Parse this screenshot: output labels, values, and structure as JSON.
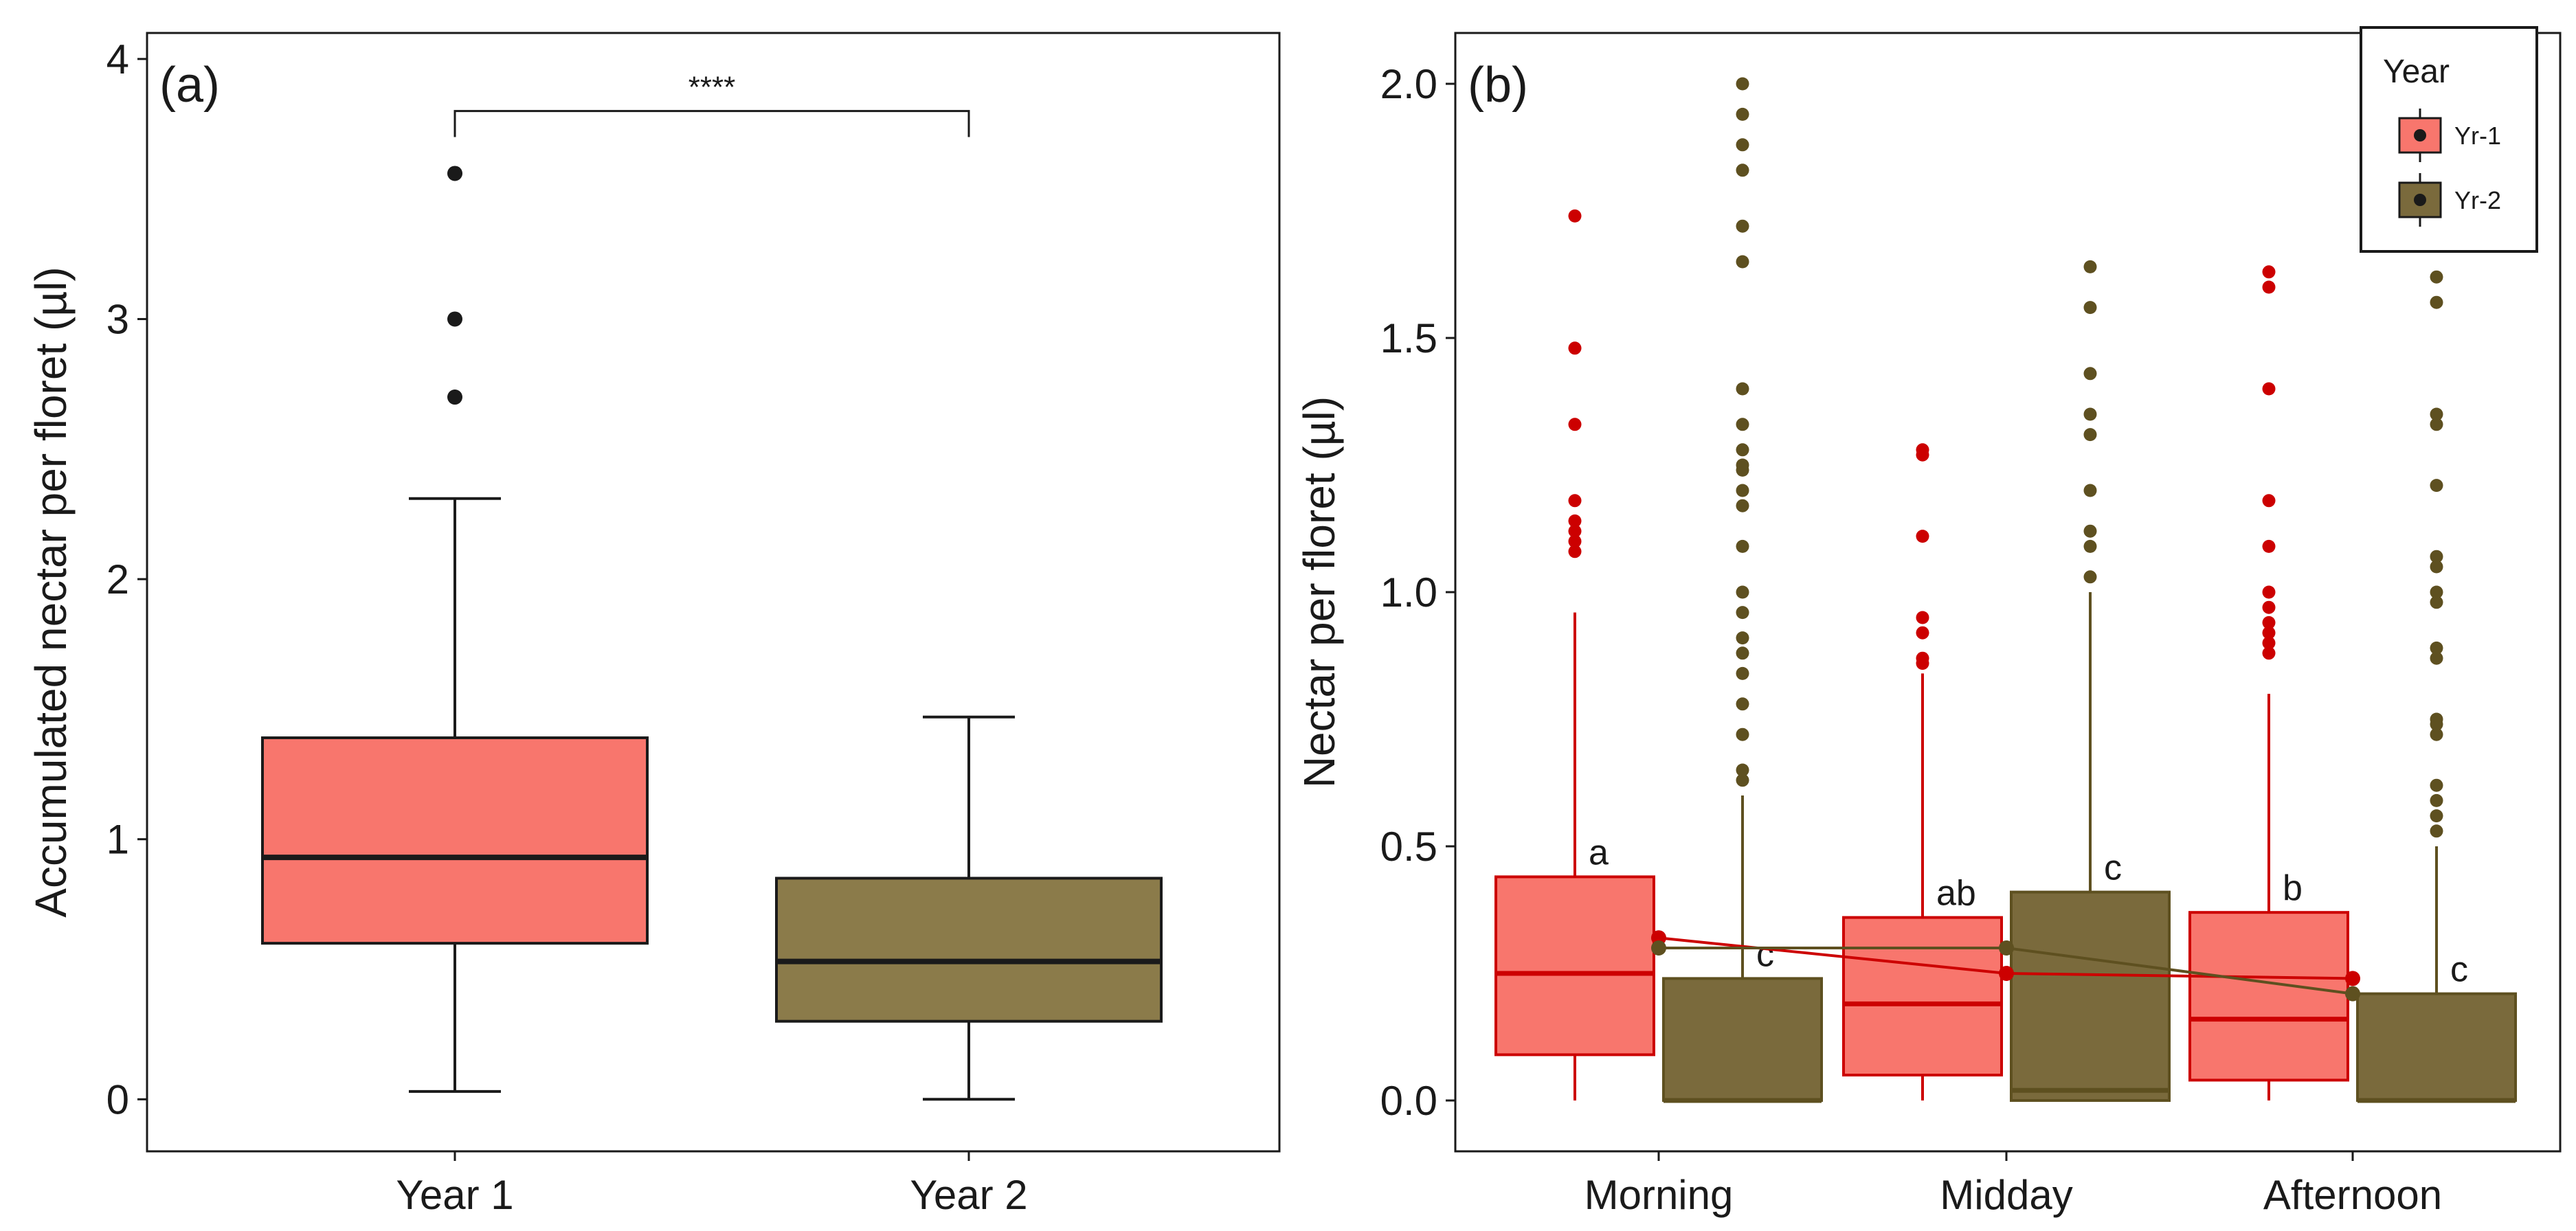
{
  "chart_data": [
    {
      "panel_label": "(a)",
      "type": "box",
      "ylabel": "Accumulated nectar per floret (µl)",
      "xlabel": "",
      "ylim": [
        -0.2,
        4.1
      ],
      "yticks": [
        0,
        1,
        2,
        3,
        4
      ],
      "ytick_labels": [
        "0",
        "1",
        "2",
        "3",
        "4"
      ],
      "categories": [
        "Year 1",
        "Year 2"
      ],
      "boxes": [
        {
          "category": "Year 1",
          "fill": "#F8766D",
          "whisker_low": 0.03,
          "q1": 0.6,
          "median": 0.93,
          "q3": 1.39,
          "whisker_high": 2.31,
          "outliers": [
            2.7,
            3.0,
            3.56
          ]
        },
        {
          "category": "Year 2",
          "fill": "#8B7B4A",
          "whisker_low": 0.0,
          "q1": 0.3,
          "median": 0.53,
          "q3": 0.85,
          "whisker_high": 1.47,
          "outliers": []
        }
      ],
      "significance": {
        "label": "****",
        "from": "Year 1",
        "to": "Year 2",
        "y": 3.8,
        "tick_to": 3.7
      }
    },
    {
      "panel_label": "(b)",
      "type": "box",
      "ylabel": "Nectar per floret (µl)",
      "xlabel": "",
      "ylim": [
        -0.1,
        2.1
      ],
      "yticks": [
        0.0,
        0.5,
        1.0,
        1.5,
        2.0
      ],
      "ytick_labels": [
        "0.0",
        "0.5",
        "1.0",
        "1.5",
        "2.0"
      ],
      "categories": [
        "Morning",
        "Midday",
        "Afternoon"
      ],
      "legend": {
        "title": "Year",
        "position": "top-right",
        "entries": [
          {
            "label": "Yr-1",
            "fill": "#F8766D",
            "line": "#CC0000"
          },
          {
            "label": "Yr-2",
            "fill": "#7A6A3C",
            "line": "#5E5020"
          }
        ]
      },
      "series": [
        {
          "name": "Yr-1",
          "fill": "#F8766D",
          "line": "#CC0000",
          "means": [
            0.32,
            0.25,
            0.24
          ],
          "boxes": [
            {
              "category": "Morning",
              "whisker_low": 0.0,
              "q1": 0.09,
              "median": 0.25,
              "q3": 0.44,
              "whisker_high": 0.96,
              "letter": "a",
              "outliers": [
                1.08,
                1.1,
                1.12,
                1.14,
                1.18,
                1.33,
                1.48,
                1.74
              ]
            },
            {
              "category": "Midday",
              "whisker_low": 0.0,
              "q1": 0.05,
              "median": 0.19,
              "q3": 0.36,
              "whisker_high": 0.84,
              "letter": "ab",
              "outliers": [
                0.86,
                0.87,
                0.92,
                0.95,
                1.11,
                1.27,
                1.28
              ]
            },
            {
              "category": "Afternoon",
              "whisker_low": 0.0,
              "q1": 0.04,
              "median": 0.16,
              "q3": 0.37,
              "whisker_high": 0.8,
              "letter": "b",
              "outliers": [
                0.88,
                0.9,
                0.92,
                0.94,
                0.97,
                1.0,
                1.09,
                1.18,
                1.4,
                1.6,
                1.63
              ]
            }
          ]
        },
        {
          "name": "Yr-2",
          "fill": "#7A6A3C",
          "line": "#5E5020",
          "means": [
            0.3,
            0.3,
            0.21
          ],
          "boxes": [
            {
              "category": "Morning",
              "whisker_low": 0.0,
              "q1": 0.0,
              "median": 0.0,
              "q3": 0.24,
              "whisker_high": 0.6,
              "letter": "c",
              "outliers": [
                0.63,
                0.65,
                0.72,
                0.78,
                0.84,
                0.88,
                0.91,
                0.96,
                1.0,
                1.09,
                1.17,
                1.2,
                1.24,
                1.25,
                1.28,
                1.33,
                1.4,
                1.65,
                1.72,
                1.83,
                1.88,
                1.94,
                2.0
              ]
            },
            {
              "category": "Midday",
              "whisker_low": 0.0,
              "q1": 0.0,
              "median": 0.02,
              "q3": 0.41,
              "whisker_high": 1.0,
              "letter": "c",
              "outliers": [
                1.03,
                1.09,
                1.12,
                1.2,
                1.31,
                1.35,
                1.43,
                1.56,
                1.64
              ]
            },
            {
              "category": "Afternoon",
              "whisker_low": 0.0,
              "q1": 0.0,
              "median": 0.0,
              "q3": 0.21,
              "whisker_high": 0.5,
              "letter": "c",
              "outliers": [
                0.53,
                0.56,
                0.59,
                0.62,
                0.72,
                0.74,
                0.75,
                0.87,
                0.89,
                0.98,
                1.0,
                1.05,
                1.07,
                1.21,
                1.33,
                1.35,
                1.57,
                1.62
              ]
            }
          ]
        }
      ]
    }
  ]
}
